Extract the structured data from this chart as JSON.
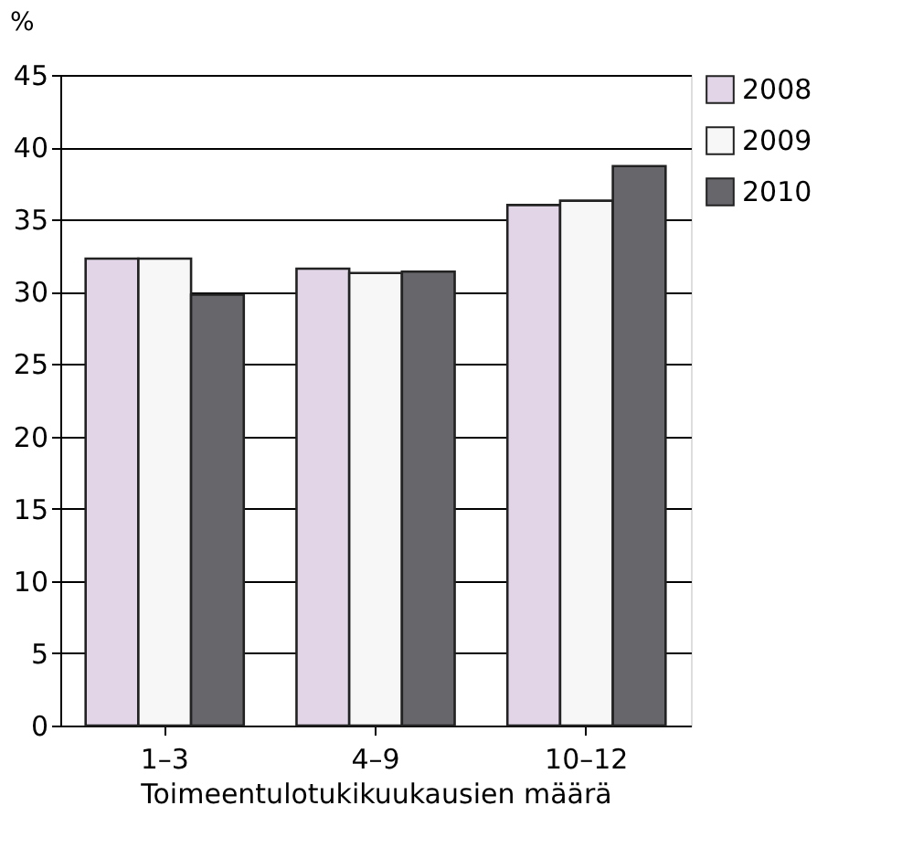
{
  "chart_data": {
    "type": "bar",
    "ylabel": "%",
    "xlabel": "Toimeentulotukikuukausien määrä",
    "categories": [
      "1–3",
      "4–9",
      "10–12"
    ],
    "series": [
      {
        "name": "2008",
        "color": "#e1d5e7",
        "values": [
          32.3,
          31.6,
          36.0
        ]
      },
      {
        "name": "2009",
        "color": "#f7f7f7",
        "values": [
          32.3,
          31.3,
          36.3
        ]
      },
      {
        "name": "2010",
        "color": "#67666b",
        "values": [
          29.8,
          31.4,
          38.7
        ]
      }
    ],
    "ylim": [
      0,
      45
    ],
    "yticks": [
      0,
      5,
      10,
      15,
      20,
      25,
      30,
      35,
      40,
      45
    ],
    "grid": "y",
    "legend": "right"
  }
}
